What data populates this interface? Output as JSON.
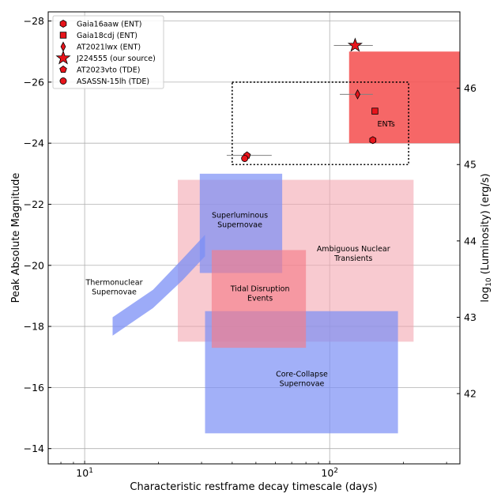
{
  "chart_data": {
    "type": "scatter",
    "title": "",
    "xlabel": "Characteristic restframe decay timescale (days)",
    "ylabel": "Peak Absolute Magnitude",
    "y2label": "log10 (Luminosity) (erg/s)",
    "xscale": "log",
    "xlim": [
      7.1,
      340
    ],
    "ylim": [
      -13.5,
      -28.3
    ],
    "grid": true,
    "x_ticks": [
      {
        "value": 10,
        "base": "10",
        "exp": "1"
      },
      {
        "value": 100,
        "base": "10",
        "exp": "2"
      }
    ],
    "y_ticks": [
      -28,
      -26,
      -24,
      -22,
      -20,
      -18,
      -16,
      -14
    ],
    "y_tick_labels": [
      "−28",
      "−26",
      "−24",
      "−22",
      "−20",
      "−18",
      "−16",
      "−14"
    ],
    "y2_ticks": [
      {
        "label": "42",
        "mag": -15.8
      },
      {
        "label": "43",
        "mag": -18.3
      },
      {
        "label": "44",
        "mag": -20.8
      },
      {
        "label": "45",
        "mag": -23.3
      },
      {
        "label": "46",
        "mag": -25.8
      }
    ],
    "regions": [
      {
        "name": "Ambiguous Nuclear Transients",
        "label_lines": [
          "Ambiguous Nuclear",
          "Transients"
        ],
        "x": [
          24,
          220
        ],
        "y": [
          -17.5,
          -22.8
        ],
        "color": "#f4a6b0",
        "opacity": 0.6,
        "label_at": [
          125,
          -20.3
        ]
      },
      {
        "name": "Core-Collapse Supernovae",
        "label_lines": [
          "Core-Collapse",
          "Supernovae"
        ],
        "x": [
          31,
          190
        ],
        "y": [
          -14.5,
          -18.5
        ],
        "color": "#7b8ff5",
        "opacity": 0.7,
        "label_at": [
          77,
          -16.2
        ]
      },
      {
        "name": "Superluminous Supernovae",
        "label_lines": [
          "Superluminous",
          "Supernovae"
        ],
        "x": [
          29.5,
          64
        ],
        "y": [
          -19.75,
          -23.0
        ],
        "color": "#7b8ff5",
        "opacity": 0.7,
        "label_at": [
          43,
          -21.4
        ]
      },
      {
        "name": "Tidal Disruption Events",
        "label_lines": [
          "Tidal Disruption",
          "Events"
        ],
        "x": [
          33,
          80
        ],
        "y": [
          -17.3,
          -20.5
        ],
        "color": "#f47d88",
        "opacity": 0.65,
        "label_at": [
          52,
          -19.0
        ]
      },
      {
        "name": "ENTs",
        "label_lines": [
          "ENTs"
        ],
        "x": [
          120,
          340
        ],
        "y": [
          -24.0,
          -27.0
        ],
        "color": "#f55656",
        "opacity": 0.9,
        "label_at": [
          170,
          -24.55
        ]
      }
    ],
    "thermonuclear_band": {
      "label_lines": [
        "Thermonuclear",
        "Supernovae"
      ],
      "label_at": [
        13.2,
        -19.2
      ],
      "upper": [
        [
          13,
          -18.3
        ],
        [
          19,
          -19.2
        ],
        [
          25,
          -20.2
        ],
        [
          31,
          -21.0
        ]
      ],
      "lower": [
        [
          31,
          -20.3
        ],
        [
          25,
          -19.5
        ],
        [
          19,
          -18.6
        ],
        [
          13,
          -17.7
        ]
      ],
      "color": "#7b8ff5",
      "opacity": 0.75
    },
    "dotted_box": {
      "x": [
        40,
        210
      ],
      "y": [
        -23.3,
        -26.0
      ]
    },
    "series": [
      {
        "name": "Gaia16aaw (ENT)",
        "marker": "hexagon",
        "points": [
          {
            "x": 150,
            "y": -24.1,
            "xerr": 0
          }
        ]
      },
      {
        "name": "Gaia18cdj (ENT)",
        "marker": "square",
        "points": [
          {
            "x": 153,
            "y": -25.05,
            "xerr": 0
          }
        ]
      },
      {
        "name": "AT2021lwx (ENT)",
        "marker": "diamond",
        "points": [
          {
            "x": 130,
            "y": -25.6,
            "xerr": [
              20,
              20
            ]
          }
        ]
      },
      {
        "name": "J224555 (our source)",
        "marker": "star",
        "points": [
          {
            "x": 127,
            "y": -27.2,
            "xerr": [
              23,
              23
            ]
          }
        ]
      },
      {
        "name": "AT2023vto (TDE)",
        "marker": "pentagon",
        "points": [
          {
            "x": 46,
            "y": -23.6,
            "xerr": [
              8,
              12
            ]
          }
        ]
      },
      {
        "name": "ASASSN-15lh (TDE)",
        "marker": "circle",
        "points": [
          {
            "x": 45,
            "y": -23.5,
            "xerr": 0
          }
        ]
      }
    ],
    "marker_color": "#e8141b",
    "legend_position": "top-left"
  }
}
